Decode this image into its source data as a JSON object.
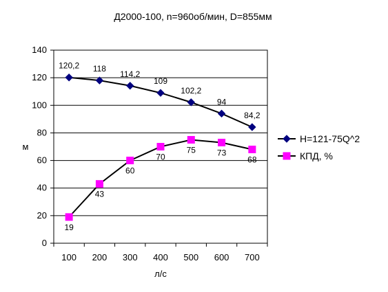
{
  "chart_data": {
    "type": "line",
    "title": "Д2000-100,  n=960об/мин,  D=855мм",
    "xlabel": "л/с",
    "ylabel": "м",
    "x": [
      100,
      200,
      300,
      400,
      500,
      600,
      700
    ],
    "x_tick_labels": [
      "100",
      "200",
      "300",
      "400",
      "500",
      "600",
      "700"
    ],
    "y_ticks": [
      "0",
      "20",
      "40",
      "60",
      "80",
      "100",
      "120",
      "140"
    ],
    "ylim": [
      0,
      140
    ],
    "grid": "horizontal",
    "legend_position": "right",
    "series": [
      {
        "name": "H=121-75Q^2",
        "values": [
          120.2,
          118,
          114.2,
          109,
          102.2,
          94,
          84.2
        ],
        "labels": [
          "120,2",
          "118",
          "114,2",
          "109",
          "102,2",
          "94",
          "84,2"
        ],
        "color": "#00007f",
        "marker": "diamond"
      },
      {
        "name": "КПД, %",
        "values": [
          19,
          43,
          60,
          70,
          75,
          73,
          68
        ],
        "labels": [
          "19",
          "43",
          "60",
          "70",
          "75",
          "73",
          "68"
        ],
        "color": "#ff00ff",
        "marker": "square"
      }
    ]
  }
}
